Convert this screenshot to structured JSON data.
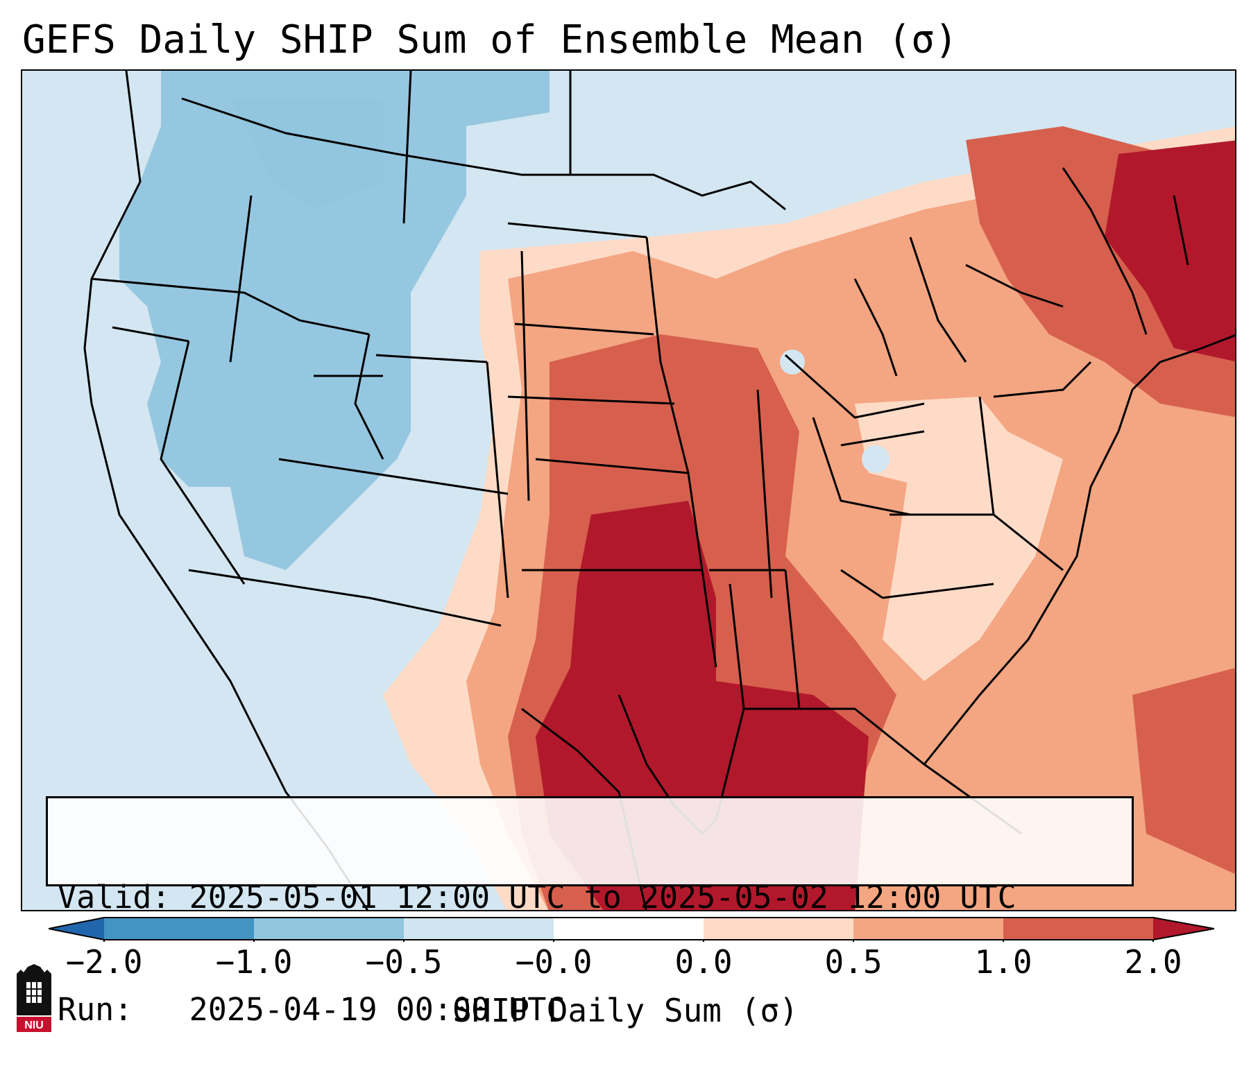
{
  "title": "GEFS Daily SHIP Sum of Ensemble Mean (σ)",
  "info": {
    "valid_line": "Valid: 2025-05-01 12:00 UTC to 2025-05-02 12:00 UTC",
    "run_line": "Run:   2025-04-19 00:00 UTC"
  },
  "colorbar": {
    "label": "SHIP Daily Sum (σ)",
    "ticks": [
      "−2.0",
      "−1.0",
      "−0.5",
      "−0.0",
      "0.0",
      "0.5",
      "1.0",
      "2.0"
    ],
    "colors": {
      "below": "#2166ac",
      "bin1": "#4393c3",
      "bin2": "#92c5de",
      "bin3": "#d1e5f0",
      "bin4": "#fddbc7",
      "bin5": "#f4a582",
      "bin6": "#d6604d",
      "above": "#b2182b"
    },
    "extend": "both"
  },
  "logo": {
    "text": "NIU"
  },
  "map": {
    "region": "Contiguous United States",
    "outlines": "state and coastline borders"
  }
}
